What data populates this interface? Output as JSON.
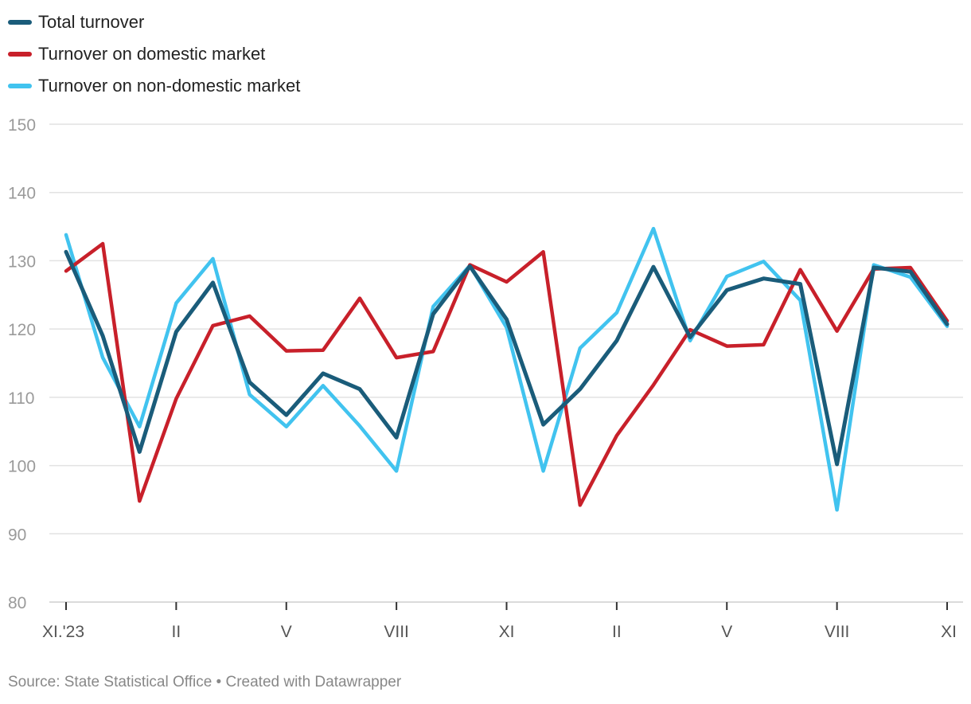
{
  "chart_data": {
    "type": "line",
    "title": "",
    "xlabel": "",
    "ylabel": "",
    "ylim": [
      80,
      150
    ],
    "yticks": [
      80,
      90,
      100,
      110,
      120,
      130,
      140,
      150
    ],
    "grid": true,
    "legend_position": "top-left",
    "x": [
      "XI.'23",
      "XII",
      "I",
      "II",
      "III",
      "IV",
      "V",
      "VI",
      "VII",
      "VIII",
      "IX",
      "X",
      "XI",
      "XII",
      "I",
      "II",
      "III",
      "IV",
      "V",
      "VI",
      "VII",
      "VIII",
      "IX",
      "X",
      "XI"
    ],
    "x_tick_labels": [
      {
        "index": 0,
        "label": "XI.'23"
      },
      {
        "index": 3,
        "label": "II"
      },
      {
        "index": 6,
        "label": "V"
      },
      {
        "index": 9,
        "label": "VIII"
      },
      {
        "index": 12,
        "label": "XI"
      },
      {
        "index": 15,
        "label": "II"
      },
      {
        "index": 18,
        "label": "V"
      },
      {
        "index": 21,
        "label": "VIII"
      },
      {
        "index": 24,
        "label": "XI"
      }
    ],
    "series": [
      {
        "name": "Total turnover",
        "color": "#1a5c7a",
        "values": [
          131.3,
          119.0,
          102.0,
          119.6,
          126.8,
          112.2,
          107.4,
          113.5,
          111.2,
          104.1,
          122.2,
          129.2,
          121.4,
          106.0,
          111.2,
          118.3,
          129.1,
          118.8,
          125.7,
          127.4,
          126.6,
          100.2,
          129.0,
          128.4,
          120.7
        ]
      },
      {
        "name": "Turnover on domestic market",
        "color": "#c8202a",
        "values": [
          128.5,
          132.5,
          94.8,
          109.8,
          120.5,
          121.9,
          116.8,
          116.9,
          124.5,
          115.8,
          116.7,
          129.4,
          126.9,
          131.3,
          94.2,
          104.4,
          111.8,
          119.9,
          117.5,
          117.7,
          128.7,
          119.7,
          128.8,
          129.0,
          121.2
        ]
      },
      {
        "name": "Turnover on non-domestic market",
        "color": "#41c3ef",
        "values": [
          133.8,
          115.8,
          105.7,
          123.8,
          130.3,
          110.4,
          105.7,
          111.7,
          105.8,
          99.2,
          123.3,
          129.3,
          120.2,
          99.2,
          117.2,
          122.4,
          134.7,
          118.3,
          127.7,
          129.9,
          124.2,
          93.5,
          129.4,
          127.6,
          120.4
        ]
      }
    ]
  },
  "footer": {
    "text": "Source: State Statistical Office • Created with Datawrapper"
  }
}
